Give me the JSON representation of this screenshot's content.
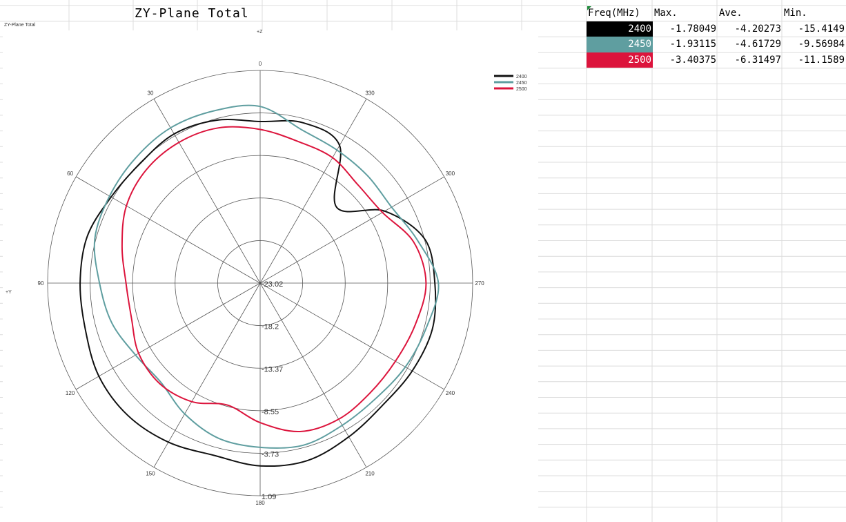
{
  "sheet": {
    "title": "ZY-Plane Total"
  },
  "chart_data": {
    "type": "polar",
    "title": "ZY-Plane Total",
    "axis_labels": {
      "top": "+Z",
      "left": "+Y"
    },
    "angle_ticks": [
      "0",
      "30",
      "60",
      "90",
      "120",
      "150",
      "180",
      "210",
      "240",
      "270",
      "300",
      "330"
    ],
    "radial_ticks": [
      "-23.02",
      "-18.2",
      "-13.37",
      "-8.55",
      "-3.73",
      "1.09"
    ],
    "rlim": [
      -23.02,
      1.09
    ],
    "grid": true,
    "legend_position": "top-right",
    "series": [
      {
        "name": "2400",
        "color": "#111111",
        "angles": [
          0,
          15,
          30,
          45,
          60,
          75,
          90,
          105,
          120,
          135,
          150,
          165,
          180,
          195,
          210,
          225,
          240,
          255,
          270,
          285,
          300,
          315,
          330,
          345
        ],
        "values": [
          -4.7,
          -3.9,
          -3.5,
          -3.8,
          -3.5,
          -2.7,
          -2.6,
          -2.5,
          -1.9,
          -1.8,
          -2.2,
          -2.8,
          -2.3,
          -2.2,
          -2.9,
          -3.4,
          -3.1,
          -2.8,
          -3.2,
          -3.7,
          -6.7,
          -10.8,
          -5.0,
          -4.2
        ]
      },
      {
        "name": "2450",
        "color": "#5f9ea0",
        "angles": [
          0,
          15,
          30,
          45,
          60,
          75,
          90,
          105,
          120,
          135,
          150,
          165,
          180,
          195,
          210,
          225,
          240,
          255,
          270,
          285,
          300,
          315,
          330,
          345
        ],
        "values": [
          -3.0,
          -2.8,
          -2.7,
          -3.0,
          -3.3,
          -3.6,
          -4.8,
          -5.6,
          -6.7,
          -7.1,
          -5.9,
          -4.8,
          -4.4,
          -4.0,
          -4.4,
          -4.5,
          -4.0,
          -3.5,
          -2.8,
          -4.5,
          -5.8,
          -5.8,
          -5.6,
          -5.0
        ]
      },
      {
        "name": "2500",
        "color": "#dc143c",
        "angles": [
          0,
          15,
          30,
          45,
          60,
          75,
          90,
          105,
          120,
          135,
          150,
          165,
          180,
          195,
          210,
          225,
          240,
          255,
          270,
          285,
          300,
          315,
          330,
          345
        ],
        "values": [
          -5.6,
          -4.8,
          -4.6,
          -4.8,
          -5.5,
          -6.8,
          -7.8,
          -7.9,
          -7.1,
          -6.9,
          -7.5,
          -8.7,
          -7.2,
          -5.6,
          -5.2,
          -5.4,
          -5.3,
          -4.8,
          -4.2,
          -5.0,
          -7.0,
          -7.3,
          -6.6,
          -6.4
        ]
      }
    ]
  },
  "table": {
    "headers": [
      "Freq(MHz)",
      "Max.",
      "Ave.",
      "Min."
    ],
    "rows": [
      {
        "freq": "2400",
        "max": "-1.78049",
        "ave": "-4.20273",
        "min": "-15.4149",
        "color": "#000000"
      },
      {
        "freq": "2450",
        "max": "-1.93115",
        "ave": "-4.61729",
        "min": "-9.56984",
        "color": "#5f9ea0"
      },
      {
        "freq": "2500",
        "max": "-3.40375",
        "ave": "-6.31497",
        "min": "-11.1589",
        "color": "#dc143c"
      }
    ]
  }
}
